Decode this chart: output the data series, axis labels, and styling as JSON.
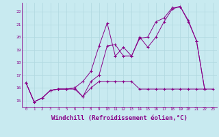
{
  "background_color": "#c8eaf0",
  "grid_color": "#b0d8e0",
  "line_color": "#880088",
  "xlabel": "Windchill (Refroidissement éolien,°C)",
  "xlabel_fontsize": 6.5,
  "ylim": [
    14.5,
    22.7
  ],
  "xlim": [
    -0.5,
    23.5
  ],
  "yticks": [
    15,
    16,
    17,
    18,
    19,
    20,
    21,
    22
  ],
  "xtick_labels": [
    "0",
    "1",
    "2",
    "3",
    "4",
    "5",
    "6",
    "7",
    "8",
    "9",
    "10",
    "11",
    "12",
    "13",
    "14",
    "15",
    "16",
    "17",
    "18",
    "19",
    "20",
    "21",
    "22",
    "23"
  ],
  "line1_x": [
    0,
    1,
    2,
    3,
    4,
    5,
    6,
    7,
    8,
    9,
    10,
    11,
    12,
    13,
    14,
    15,
    16,
    17,
    18,
    19,
    20,
    21,
    22,
    23
  ],
  "line1_y": [
    16.4,
    14.9,
    15.2,
    15.8,
    15.9,
    15.9,
    15.9,
    15.3,
    16.0,
    16.5,
    16.5,
    16.5,
    16.5,
    16.5,
    15.9,
    15.9,
    15.9,
    15.9,
    15.9,
    15.9,
    15.9,
    15.9,
    15.9,
    15.9
  ],
  "line2_x": [
    0,
    1,
    2,
    3,
    4,
    5,
    6,
    7,
    8,
    9,
    10,
    11,
    12,
    13,
    14,
    15,
    16,
    17,
    18,
    19,
    20,
    21,
    22
  ],
  "line2_y": [
    16.4,
    14.9,
    15.2,
    15.8,
    15.9,
    15.9,
    16.0,
    16.5,
    17.3,
    19.3,
    21.1,
    18.5,
    19.2,
    18.5,
    19.9,
    20.0,
    21.2,
    21.5,
    22.3,
    22.4,
    21.3,
    19.7,
    15.9
  ],
  "line3_x": [
    0,
    1,
    2,
    3,
    4,
    5,
    6,
    7,
    8,
    9,
    10,
    11,
    12,
    13,
    14,
    15,
    16,
    17,
    18,
    19,
    20,
    21,
    22
  ],
  "line3_y": [
    16.4,
    14.9,
    15.2,
    15.8,
    15.9,
    15.9,
    16.0,
    15.3,
    16.5,
    17.0,
    19.3,
    19.4,
    18.5,
    18.5,
    20.0,
    19.2,
    20.0,
    21.2,
    22.2,
    22.4,
    21.2,
    19.7,
    15.9
  ]
}
